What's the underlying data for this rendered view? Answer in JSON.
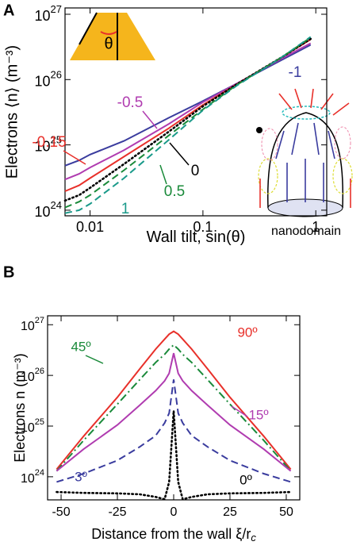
{
  "chart_data": [
    {
      "type": "line",
      "panel_label": "A",
      "ylabel": "Electrons ⟨n⟩ (m⁻³)",
      "xlabel": "Wall tilt, sin(θ)",
      "log_x": true,
      "log_y": true,
      "xlim": [
        0.006,
        1.25
      ],
      "xticks": [
        0.01,
        0.1,
        1
      ],
      "ylim": [
        8.2e+23,
        1.25e+27
      ],
      "yticks": [
        {
          "value": 1e+24,
          "label": "10",
          "exp": "24"
        },
        {
          "value": 1e+25,
          "label": "10",
          "exp": "25"
        },
        {
          "value": 1e+26,
          "label": "10",
          "exp": "26"
        },
        {
          "value": 1e+27,
          "label": "10",
          "exp": "27"
        }
      ],
      "inset_symbol": "θ",
      "inset_label": "nanodomain",
      "x": [
        0.006,
        0.008,
        0.01,
        0.02,
        0.05,
        0.1,
        0.2,
        0.5,
        0.9
      ],
      "series": [
        {
          "name": "-1",
          "color": "#3a3c9e",
          "dash": "solid",
          "values": [
            4.8e+24,
            5.8e+24,
            7.1e+24,
            1.15e+25,
            2.6e+25,
            4.7e+25,
            8.7e+25,
            2e+26,
            3.4e+26
          ]
        },
        {
          "name": "-0.5",
          "color": "#b03cb0",
          "dash": "solid",
          "values": [
            2.95e+24,
            3.6e+24,
            4.5e+24,
            8.3e+24,
            2.1e+25,
            4.5e+25,
            8.7e+25,
            2.1e+26,
            3.6e+26
          ]
        },
        {
          "name": "-0.15",
          "color": "#e8302a",
          "dash": "solid",
          "values": [
            1.95e+24,
            2.4e+24,
            3.1e+24,
            6.6e+24,
            1.8e+25,
            4.1e+25,
            8.5e+25,
            2.2e+26,
            4.1e+26
          ]
        },
        {
          "name": "0",
          "color": "#000000",
          "dash": "dotted",
          "values": [
            1.4e+24,
            1.7e+24,
            2.2e+24,
            5.1e+24,
            1.6e+25,
            3.9e+25,
            8.5e+25,
            2.2e+26,
            4.2e+26
          ]
        },
        {
          "name": "0.5",
          "color": "#1a8a3a",
          "dash": "dashed",
          "values": [
            1.1e+24,
            1.35e+24,
            1.7e+24,
            4.1e+24,
            1.4e+25,
            3.5e+25,
            8.3e+25,
            2.2e+26,
            4.4e+26
          ]
        },
        {
          "name": "1",
          "color": "#1a9a8a",
          "dash": "dashed",
          "values": [
            9e+23,
            1e+24,
            1.25e+24,
            3.1e+24,
            1.2e+25,
            3.4e+25,
            8.1e+25,
            2.2e+26,
            4.5e+26
          ]
        }
      ]
    },
    {
      "type": "line",
      "panel_label": "B",
      "ylabel": "Electrons n (m⁻³)",
      "xlabel": "Distance from the wall ξ/r",
      "xlabel_sub": "c",
      "log_y": true,
      "xlim": [
        -56,
        56
      ],
      "xticks": [
        -50,
        -25,
        0,
        25,
        50
      ],
      "ylim": [
        3.5e+23,
        1.5e+27
      ],
      "yticks": [
        {
          "value": 1e+24,
          "label": "10",
          "exp": "24"
        },
        {
          "value": 1e+25,
          "label": "10",
          "exp": "25"
        },
        {
          "value": 1e+26,
          "label": "10",
          "exp": "26"
        },
        {
          "value": 1e+27,
          "label": "10",
          "exp": "27"
        }
      ],
      "x": [
        -52,
        -40,
        -25,
        -15,
        -8,
        -4,
        -2,
        0,
        2,
        4,
        8,
        15,
        25,
        40,
        52
      ],
      "series": [
        {
          "name": "90º",
          "color": "#e8302a",
          "dash": "solid",
          "values": [
            1.4e+24,
            6.3e+24,
            3.7e+25,
            1.35e+26,
            3.3e+26,
            5.2e+26,
            6.5e+26,
            7.4e+26,
            6.5e+26,
            5.2e+26,
            3.3e+26,
            1.35e+26,
            3.7e+25,
            6.3e+24,
            1.4e+24
          ]
        },
        {
          "name": "45º",
          "color": "#1a8a3a",
          "dash": "dashdot",
          "values": [
            1.3e+24,
            5.2e+24,
            2.7e+25,
            8.3e+25,
            1.8e+26,
            2.6e+26,
            3.3e+26,
            4e+26,
            3.3e+26,
            2.6e+26,
            1.8e+26,
            8.3e+25,
            2.7e+25,
            5.2e+24,
            1.3e+24
          ]
        },
        {
          "name": "15º",
          "color": "#b03cb0",
          "dash": "solid",
          "values": [
            1.3e+24,
            3.5e+24,
            1.05e+25,
            2.6e+25,
            5e+25,
            7.8e+25,
            1.1e+26,
            2.75e+26,
            1.1e+26,
            7.8e+25,
            5e+25,
            2.6e+25,
            1.05e+25,
            3.5e+24,
            1.3e+24
          ]
        },
        {
          "name": "3º",
          "color": "#3a3c9e",
          "dash": "dashed",
          "values": [
            7.9e+23,
            1.15e+24,
            2.1e+24,
            3.9e+24,
            6.5e+24,
            1.15e+25,
            1.8e+25,
            8.3e+25,
            1.8e+25,
            1.15e+25,
            6.5e+24,
            3.9e+24,
            2.1e+24,
            1.15e+24,
            7.9e+23
          ]
        },
        {
          "name": "0º",
          "color": "#000000",
          "dash": "dotted",
          "values": [
            5e+23,
            4.8e+23,
            4.7e+23,
            4.5e+23,
            4e+23,
            3.6e+23,
            7.9e+23,
            2e+25,
            7.9e+23,
            3.6e+23,
            4e+23,
            4.5e+23,
            4.7e+23,
            4.8e+23,
            5e+23
          ]
        }
      ]
    }
  ]
}
